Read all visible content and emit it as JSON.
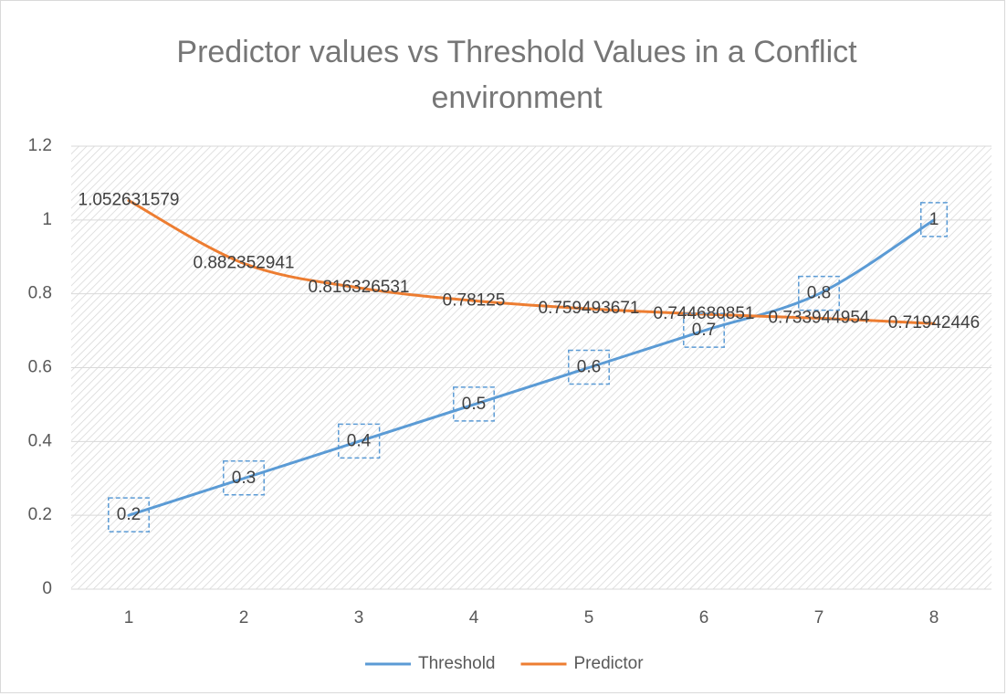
{
  "chart_data": {
    "type": "line",
    "title": "Predictor values vs Threshold Values in a Conflict environment",
    "categories": [
      "1",
      "2",
      "3",
      "4",
      "5",
      "6",
      "7",
      "8"
    ],
    "series": [
      {
        "name": "Threshold",
        "color": "#5b9bd5",
        "values": [
          0.2,
          0.3,
          0.4,
          0.5,
          0.6,
          0.7,
          0.8,
          1
        ]
      },
      {
        "name": "Predictor",
        "color": "#ed7d31",
        "values": [
          1.052631579,
          0.882352941,
          0.816326531,
          0.78125,
          0.759493671,
          0.744680851,
          0.733944954,
          0.71942446
        ]
      }
    ],
    "ylim": [
      0,
      1.2
    ],
    "yticks": [
      0,
      0.2,
      0.4,
      0.6,
      0.8,
      1,
      1.2
    ],
    "grid": true,
    "smooth": true,
    "legend": "bottom"
  }
}
